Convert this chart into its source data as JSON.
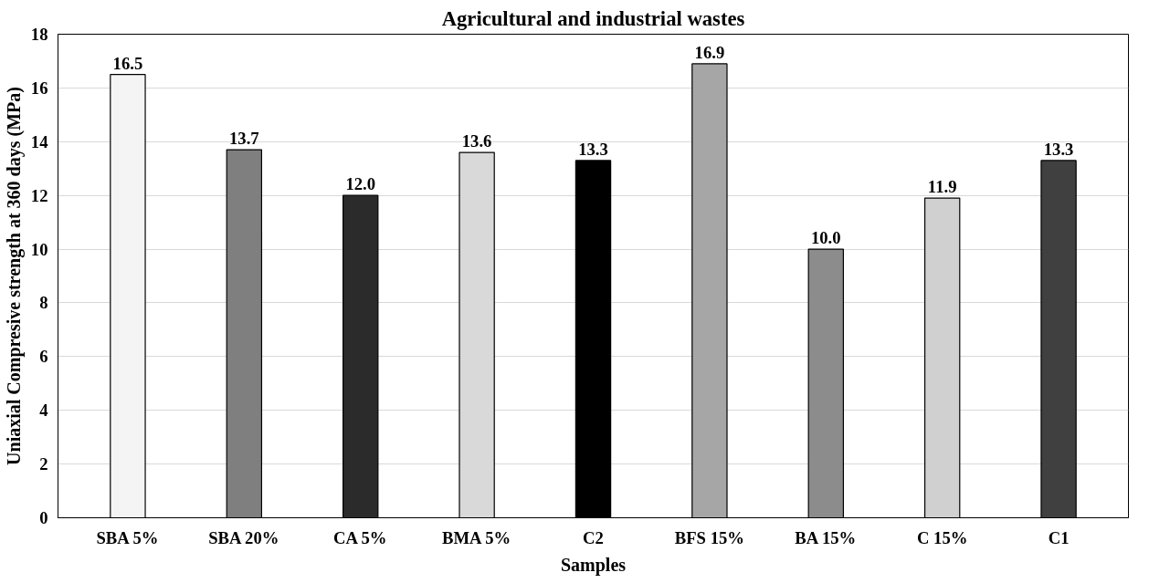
{
  "chart_data": {
    "type": "bar",
    "title": "Agricultural and industrial wastes",
    "xlabel": "Samples",
    "ylabel": "Uniaxial Compresive strength at 360 days (MPa)",
    "categories": [
      "SBA 5%",
      "SBA 20%",
      "CA 5%",
      "BMA 5%",
      "C2",
      "BFS 15%",
      "BA 15%",
      "C 15%",
      "C1"
    ],
    "values": [
      16.5,
      13.7,
      12.0,
      13.6,
      13.3,
      16.9,
      10.0,
      11.9,
      13.3
    ],
    "value_labels": [
      "16.5",
      "13.7",
      "12.0",
      "13.6",
      "13.3",
      "16.9",
      "10.0",
      "11.9",
      "13.3"
    ],
    "colors": [
      "#f4f4f4",
      "#7f7f7f",
      "#2b2b2b",
      "#d9d9d9",
      "#000000",
      "#a6a6a6",
      "#8c8c8c",
      "#d0d0d0",
      "#404040"
    ],
    "ylim": [
      0,
      18
    ],
    "yticks": [
      0,
      2,
      4,
      6,
      8,
      10,
      12,
      14,
      16,
      18
    ],
    "grid": "y"
  }
}
